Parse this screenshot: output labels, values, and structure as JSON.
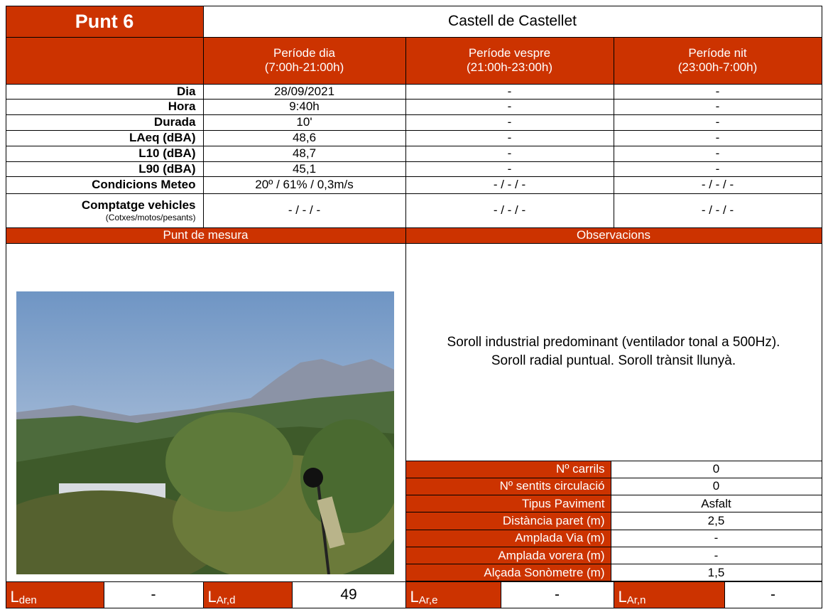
{
  "header": {
    "title": "Punt 6",
    "location": "Castell de Castellet"
  },
  "periods": [
    {
      "name": "Període dia",
      "hours": "(7:00h-21:00h)"
    },
    {
      "name": "Període vespre",
      "hours": "(21:00h-23:00h)"
    },
    {
      "name": "Període nit",
      "hours": "(23:00h-7:00h)"
    }
  ],
  "rows": [
    {
      "label": "Dia",
      "values": [
        "28/09/2021",
        "-",
        "-"
      ]
    },
    {
      "label": "Hora",
      "values": [
        "9:40h",
        "-",
        "-"
      ]
    },
    {
      "label": "Durada",
      "values": [
        "10'",
        "-",
        "-"
      ]
    },
    {
      "label": "LAeq (dBA)",
      "values": [
        "48,6",
        "-",
        "-"
      ]
    },
    {
      "label": "L10 (dBA)",
      "values": [
        "48,7",
        "-",
        "-"
      ]
    },
    {
      "label": "L90 (dBA)",
      "values": [
        "45,1",
        "-",
        "-"
      ]
    },
    {
      "label": "Condicions Meteo",
      "values": [
        "20º / 61% / 0,3m/s",
        "- / - / -",
        "- / - / -"
      ]
    },
    {
      "label": "Comptatge vehicles",
      "sublabel": "(Cotxes/motos/pesants)",
      "values": [
        "- / - / -",
        "- / - / -",
        "- / - / -"
      ]
    }
  ],
  "sections": {
    "left": "Punt de mesura",
    "right": "Observacions"
  },
  "observations": "Soroll industrial predominant (ventilador tonal a 500Hz). Soroll radial puntual. Soroll trànsit llunyà.",
  "parameters": [
    {
      "label": "Nº carrils",
      "value": "0"
    },
    {
      "label": "Nº sentits circulació",
      "value": "0"
    },
    {
      "label": "Tipus Paviment",
      "value": "Asfalt"
    },
    {
      "label": "Distància paret (m)",
      "value": "2,5"
    },
    {
      "label": "Amplada Via (m)",
      "value": "-"
    },
    {
      "label": "Amplada vorera (m)",
      "value": "-"
    },
    {
      "label": "Alçada Sonòmetre (m)",
      "value": "1,5"
    }
  ],
  "indices": [
    {
      "symbol": "L",
      "subscript": "den",
      "value": "-"
    },
    {
      "symbol": "L",
      "subscript": "Ar,d",
      "value": "49"
    },
    {
      "symbol": "L",
      "subscript": "Ar,e",
      "value": "-"
    },
    {
      "symbol": "L",
      "subscript": "Ar,n",
      "value": "-"
    }
  ]
}
